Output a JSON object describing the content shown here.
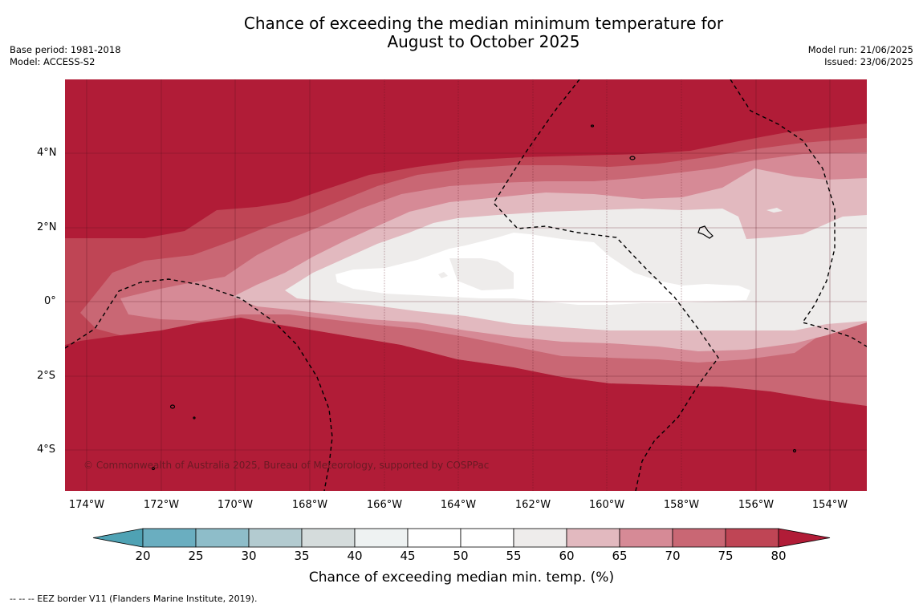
{
  "title_line1": "Chance of exceeding the median minimum temperature for",
  "title_line2": "August to October 2025",
  "meta_left": [
    "Base period: 1981-2018",
    "Model: ACCESS-S2"
  ],
  "meta_right": [
    "Model run: 21/06/2025",
    "Issued: 23/06/2025"
  ],
  "latitude_labels": [
    "4°N",
    "2°N",
    "0°",
    "2°S",
    "4°S"
  ],
  "longitude_labels": [
    "174°W",
    "172°W",
    "170°W",
    "168°W",
    "166°W",
    "164°W",
    "162°W",
    "160°W",
    "158°W",
    "156°W",
    "154°W"
  ],
  "copyright": "© Commonwealth of Australia 2025, Bureau of Meteorology, supported by COSPPac",
  "colorbar": {
    "title": "Chance of exceeding median min. temp. (%)",
    "ticks": [
      "20",
      "25",
      "30",
      "35",
      "40",
      "45",
      "50",
      "55",
      "60",
      "65",
      "70",
      "75",
      "80"
    ],
    "colors": [
      "#4fa2b4",
      "#6aaec0",
      "#8ebdc9",
      "#b3cbd0",
      "#d5dcdc",
      "#eef2f2",
      "#ffffff",
      "#ffffff",
      "#eeeceb",
      "#e2b9bf",
      "#d68a96",
      "#c96774",
      "#bf4555",
      "#b11c37"
    ]
  },
  "footnote": "--  --  -- EEZ border V11 (Flanders Marine Institute, 2019).",
  "map": {
    "lon_range": [
      -174.6,
      -153.1
    ],
    "lat_range": [
      -5.1,
      5.85
    ],
    "palette": {
      "p80": "#b11c37",
      "p75": "#bf4555",
      "p70": "#c96774",
      "p65": "#d68a96",
      "p60": "#e2b9bf",
      "p55": "#eeeceb",
      "p50": "#ffffff"
    }
  }
}
